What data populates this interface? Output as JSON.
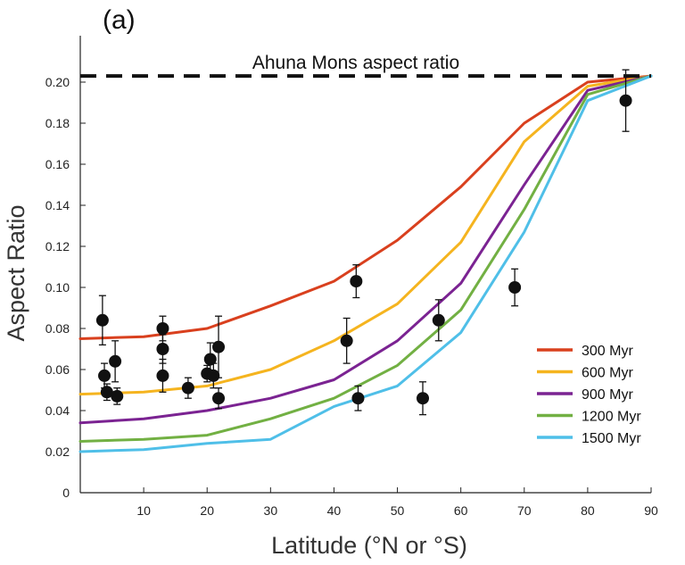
{
  "chart_data": {
    "type": "line",
    "panel_label": "(a)",
    "xlabel": "Latitude (°N or °S)",
    "ylabel": "Aspect Ratio",
    "xlim": [
      0,
      90
    ],
    "ylim": [
      0,
      0.215
    ],
    "x_ticks": [
      10,
      20,
      30,
      40,
      50,
      60,
      70,
      80,
      90
    ],
    "y_ticks": [
      0,
      0.02,
      0.04,
      0.06,
      0.08,
      0.1,
      0.12,
      0.14,
      0.16,
      0.18,
      0.2
    ],
    "y_tick_labels": [
      "0",
      "0.02",
      "0.04",
      "0.06",
      "0.08",
      "0.10",
      "0.12",
      "0.14",
      "0.16",
      "0.18",
      "0.20"
    ],
    "reference_line": {
      "label": "Ahuna Mons aspect ratio",
      "value": 0.203,
      "style": "dashed",
      "color": "#111111"
    },
    "legend_position": "bottom-right",
    "x": [
      0,
      10,
      20,
      30,
      40,
      50,
      60,
      70,
      80,
      90
    ],
    "series": [
      {
        "name": "300 Myr",
        "color": "#d9401e",
        "values": [
          0.075,
          0.076,
          0.08,
          0.091,
          0.103,
          0.123,
          0.149,
          0.18,
          0.2,
          0.203
        ]
      },
      {
        "name": "600 Myr",
        "color": "#f5b41f",
        "values": [
          0.048,
          0.049,
          0.052,
          0.06,
          0.074,
          0.092,
          0.122,
          0.171,
          0.198,
          0.203
        ]
      },
      {
        "name": "900 Myr",
        "color": "#7b2392",
        "values": [
          0.034,
          0.036,
          0.04,
          0.046,
          0.055,
          0.074,
          0.102,
          0.15,
          0.196,
          0.203
        ]
      },
      {
        "name": "1200 Myr",
        "color": "#72b043",
        "values": [
          0.025,
          0.026,
          0.028,
          0.036,
          0.046,
          0.062,
          0.089,
          0.138,
          0.194,
          0.203
        ]
      },
      {
        "name": "1500 Myr",
        "color": "#4fbfe8",
        "values": [
          0.02,
          0.021,
          0.024,
          0.026,
          0.042,
          0.052,
          0.078,
          0.127,
          0.191,
          0.203
        ]
      }
    ],
    "observations": [
      {
        "x": 3.5,
        "y": 0.084,
        "err": 0.012
      },
      {
        "x": 3.8,
        "y": 0.057,
        "err": 0.006
      },
      {
        "x": 4.2,
        "y": 0.049,
        "err": 0.004
      },
      {
        "x": 5.5,
        "y": 0.064,
        "err": 0.01
      },
      {
        "x": 5.8,
        "y": 0.047,
        "err": 0.004
      },
      {
        "x": 13.0,
        "y": 0.08,
        "err": 0.006
      },
      {
        "x": 13.0,
        "y": 0.07,
        "err": 0.007
      },
      {
        "x": 13.0,
        "y": 0.057,
        "err": 0.008
      },
      {
        "x": 17.0,
        "y": 0.051,
        "err": 0.005
      },
      {
        "x": 20.0,
        "y": 0.058,
        "err": 0.004
      },
      {
        "x": 20.5,
        "y": 0.065,
        "err": 0.008
      },
      {
        "x": 21.0,
        "y": 0.057,
        "err": 0.006
      },
      {
        "x": 21.8,
        "y": 0.071,
        "err": 0.015
      },
      {
        "x": 21.8,
        "y": 0.046,
        "err": 0.005
      },
      {
        "x": 42.0,
        "y": 0.074,
        "err": 0.011
      },
      {
        "x": 43.5,
        "y": 0.103,
        "err": 0.008
      },
      {
        "x": 43.8,
        "y": 0.046,
        "err": 0.006
      },
      {
        "x": 54.0,
        "y": 0.046,
        "err": 0.008
      },
      {
        "x": 56.5,
        "y": 0.084,
        "err": 0.01
      },
      {
        "x": 68.5,
        "y": 0.1,
        "err": 0.009
      },
      {
        "x": 86.0,
        "y": 0.191,
        "err": 0.015
      }
    ]
  }
}
